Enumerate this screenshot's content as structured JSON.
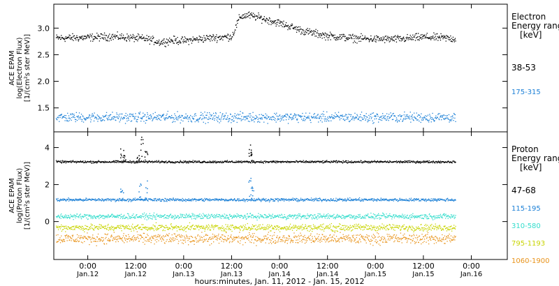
{
  "chart_data": [
    {
      "type": "scatter",
      "title": "",
      "ylabel_lines": [
        "ACE EPAM",
        "log(Electron Flux)",
        "[1/(cm²s ster MeV)]"
      ],
      "ylim": [
        1.05,
        3.45
      ],
      "yticks": [
        1.5,
        2.0,
        2.5,
        3.0
      ],
      "ytick_labels": [
        "1.5",
        "2.0",
        "2.5",
        "3.0"
      ],
      "legend_title": [
        "Electron",
        "Energy range",
        "[keV]"
      ],
      "series": [
        {
          "name": "38-53",
          "color": "#000000",
          "time_hours": [
            -8,
            0,
            6,
            12,
            15,
            18,
            21,
            24,
            30,
            36,
            38,
            40,
            42,
            48,
            54,
            60,
            66,
            72,
            78,
            84,
            90,
            92
          ],
          "values": [
            2.82,
            2.83,
            2.85,
            2.82,
            2.8,
            2.74,
            2.78,
            2.77,
            2.82,
            2.85,
            3.22,
            3.25,
            3.22,
            3.1,
            2.95,
            2.86,
            2.82,
            2.8,
            2.8,
            2.84,
            2.82,
            2.8
          ],
          "scatter": 0.035
        },
        {
          "name": "175-315",
          "color": "#1a7fd6",
          "time_hours": [
            -8,
            92
          ],
          "values": [
            1.33,
            1.33
          ],
          "scatter": 0.045
        }
      ]
    },
    {
      "type": "scatter",
      "title": "",
      "ylabel_lines": [
        "ACE EPAM",
        "log(Proton Flux)",
        "[1/(cm²s ster MeV)]"
      ],
      "ylim": [
        -2.05,
        4.85
      ],
      "yticks": [
        0,
        2,
        4
      ],
      "ytick_labels": [
        "0",
        "2",
        "4"
      ],
      "legend_title": [
        "Proton",
        "Energy range",
        "[keV]"
      ],
      "series": [
        {
          "name": "47-68",
          "color": "#000000",
          "time_hours": [
            -8,
            92
          ],
          "values": [
            3.25,
            3.25
          ],
          "scatter": 0.03,
          "spikes": [
            [
              8.5,
              4.0
            ],
            [
              9.0,
              3.6
            ],
            [
              12.5,
              3.6
            ],
            [
              13.5,
              4.6
            ],
            [
              14.5,
              4.5
            ],
            [
              40.5,
              4.3
            ],
            [
              41.0,
              3.8
            ]
          ]
        },
        {
          "name": "115-195",
          "color": "#1a7fd6",
          "time_hours": [
            -8,
            92
          ],
          "values": [
            1.2,
            1.2
          ],
          "scatter": 0.04,
          "spikes": [
            [
              8.5,
              1.8
            ],
            [
              13.0,
              2.1
            ],
            [
              14.5,
              2.4
            ],
            [
              40.5,
              2.5
            ],
            [
              41.0,
              1.9
            ]
          ]
        },
        {
          "name": "310-580",
          "color": "#33ddcc",
          "time_hours": [
            -8,
            92
          ],
          "values": [
            0.3,
            0.3
          ],
          "scatter": 0.07
        },
        {
          "name": "795-1193",
          "color": "#c8d400",
          "time_hours": [
            -8,
            92
          ],
          "values": [
            -0.3,
            -0.3
          ],
          "scatter": 0.09
        },
        {
          "name": "1060-1900",
          "color": "#e8931a",
          "time_hours": [
            -8,
            92
          ],
          "values": [
            -0.9,
            -0.9
          ],
          "scatter": 0.14
        }
      ]
    }
  ],
  "x_axis": {
    "xlim_hours": [
      -8.5,
      105
    ],
    "ticks_hours": [
      0,
      12,
      24,
      36,
      48,
      60,
      72,
      84,
      96
    ],
    "tick_labels_top": [
      "0:00",
      "12:00",
      "0:00",
      "12:00",
      "0:00",
      "12:00",
      "0:00",
      "12:00",
      "0:00"
    ],
    "tick_labels_bottom": [
      "Jan.12",
      "Jan.12",
      "Jan.13",
      "Jan.13",
      "Jan.14",
      "Jan.14",
      "Jan.15",
      "Jan.15",
      "Jan.16"
    ],
    "xlabel": "hours:minutes, Jan. 11, 2012 - Jan. 15, 2012"
  }
}
